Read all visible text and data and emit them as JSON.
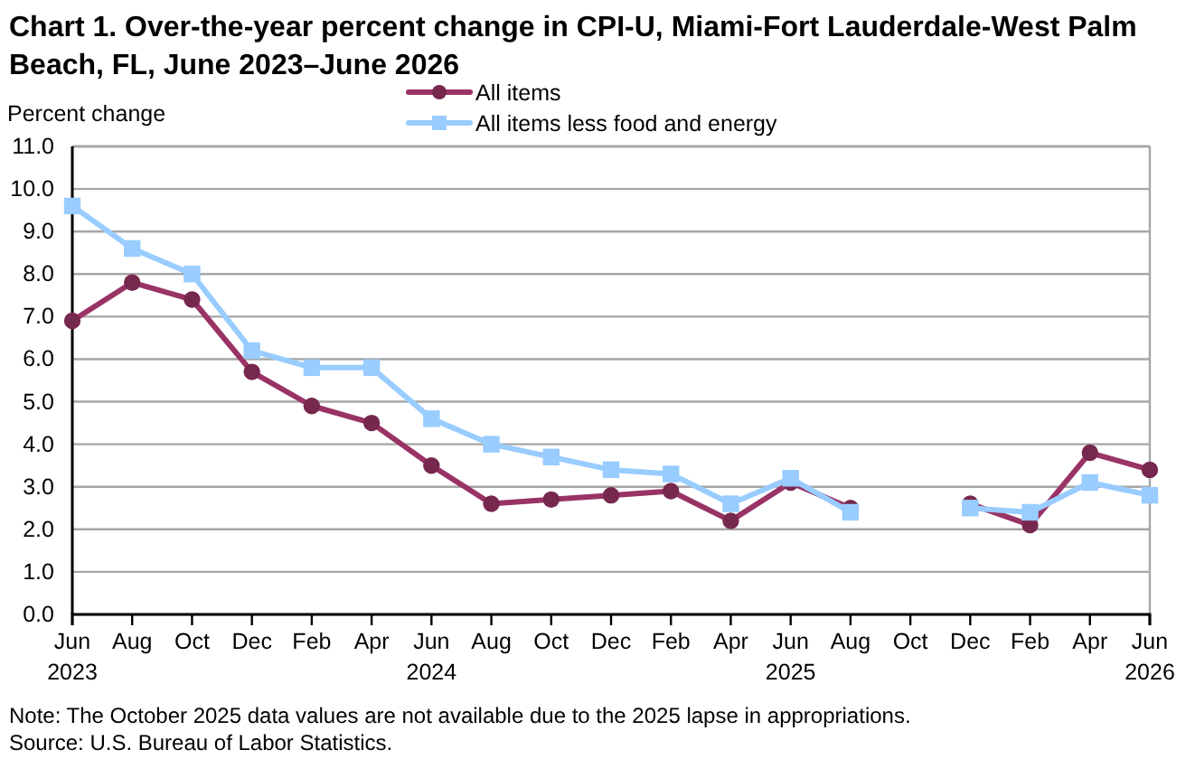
{
  "chart_data": {
    "type": "line",
    "title": "Chart 1. Over-the-year percent change in CPI-U, Miami-Fort Lauderdale-West Palm Beach, FL, June 2023–June 2026",
    "ylabel": "Percent change",
    "categories": [
      "Jun\n2023",
      "Aug",
      "Oct",
      "Dec",
      "Feb",
      "Apr",
      "Jun\n2024",
      "Aug",
      "Oct",
      "Dec",
      "Feb",
      "Apr",
      "Jun\n2025",
      "Aug",
      "Oct",
      "Dec",
      "Feb",
      "Apr",
      "Jun\n2026"
    ],
    "series": [
      {
        "name": "All items",
        "color": "#993366",
        "marker": "circle",
        "values": [
          6.9,
          7.8,
          7.4,
          5.7,
          4.9,
          4.5,
          3.5,
          2.6,
          2.7,
          2.8,
          2.9,
          2.2,
          3.1,
          2.5,
          null,
          2.6,
          2.1,
          3.8,
          3.4
        ]
      },
      {
        "name": "All items less food and energy",
        "color": "#99ccff",
        "marker": "square",
        "values": [
          9.6,
          8.6,
          8.0,
          6.2,
          5.8,
          5.8,
          4.6,
          4.0,
          3.7,
          3.4,
          3.3,
          2.6,
          3.2,
          2.4,
          null,
          2.5,
          2.4,
          3.1,
          2.8
        ]
      }
    ],
    "ylim": [
      0,
      11
    ],
    "yticks": [
      {
        "value": 0,
        "label": "0.0"
      },
      {
        "value": 1,
        "label": "1.0"
      },
      {
        "value": 2,
        "label": "2.0"
      },
      {
        "value": 3,
        "label": "3.0"
      },
      {
        "value": 4,
        "label": "4.0"
      },
      {
        "value": 5,
        "label": "5.0"
      },
      {
        "value": 6,
        "label": "6.0"
      },
      {
        "value": 7,
        "label": "7.0"
      },
      {
        "value": 8,
        "label": "8.0"
      },
      {
        "value": 9,
        "label": "9.0"
      },
      {
        "value": 10,
        "label": "10.0"
      },
      {
        "value": 11,
        "label": "11.0"
      }
    ],
    "grid": "y",
    "legend": "top",
    "line_style": "solid",
    "annotations": [
      "Note: The October 2025 data values are not available due to the 2025 lapse in appropriations.",
      "Source: U.S. Bureau of Labor Statistics."
    ]
  }
}
